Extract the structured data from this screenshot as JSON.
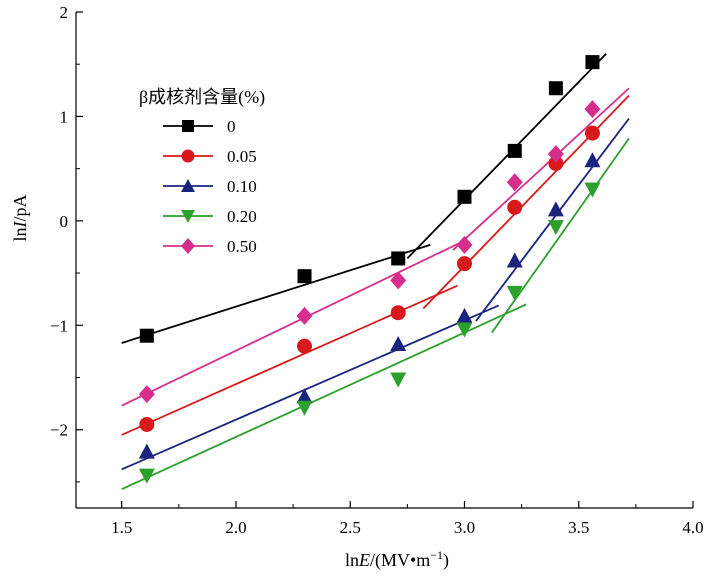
{
  "chart_data": {
    "type": "scatter",
    "xlabel": "ln",
    "xlabel_var": "E",
    "xlabel_unit": "/(MV•m",
    "xlabel_sup": "−1",
    "xlabel_close": ")",
    "ylabel": "ln",
    "ylabel_var": "I",
    "ylabel_unit": "/pA",
    "xlim": [
      1.3,
      4.0
    ],
    "ylim": [
      -2.75,
      2.0
    ],
    "x_ticks": [
      1.5,
      2.0,
      2.5,
      3.0,
      3.5,
      4.0
    ],
    "x_tick_labels": [
      "1.5",
      "2.0",
      "2.5",
      "3.0",
      "3.5",
      "4.0"
    ],
    "y_ticks": [
      2,
      1,
      0,
      -1,
      -2
    ],
    "y_tick_labels": [
      "2",
      "1",
      "0",
      "−1",
      "−2"
    ],
    "legend_title": "β成核剂含量(%)",
    "legend_position": "upper-left",
    "series": [
      {
        "name": "0",
        "color": "#000000",
        "marker": "square",
        "points": [
          [
            1.61,
            -1.1
          ],
          [
            2.3,
            -0.53
          ],
          [
            2.71,
            -0.36
          ],
          [
            3.0,
            0.23
          ],
          [
            3.22,
            0.67
          ],
          [
            3.4,
            1.27
          ],
          [
            3.56,
            1.52
          ]
        ],
        "fit_lines": [
          [
            [
              1.5,
              -1.17
            ],
            [
              2.85,
              -0.23
            ]
          ],
          [
            [
              2.75,
              -0.36
            ],
            [
              3.62,
              1.6
            ]
          ]
        ]
      },
      {
        "name": "0.05",
        "color": "#d7191c",
        "marker": "circle",
        "points": [
          [
            1.61,
            -1.95
          ],
          [
            2.3,
            -1.2
          ],
          [
            2.71,
            -0.88
          ],
          [
            3.0,
            -0.41
          ],
          [
            3.22,
            0.13
          ],
          [
            3.4,
            0.55
          ],
          [
            3.56,
            0.84
          ]
        ],
        "fit_lines": [
          [
            [
              1.5,
              -2.05
            ],
            [
              2.97,
              -0.62
            ]
          ],
          [
            [
              2.82,
              -0.84
            ],
            [
              3.72,
              1.2
            ]
          ]
        ]
      },
      {
        "name": "0.10",
        "color": "#1a237e",
        "marker": "triangle-up",
        "points": [
          [
            1.61,
            -2.21
          ],
          [
            2.3,
            -1.68
          ],
          [
            2.71,
            -1.18
          ],
          [
            3.0,
            -0.91
          ],
          [
            3.22,
            -0.38
          ],
          [
            3.4,
            0.11
          ],
          [
            3.56,
            0.58
          ]
        ],
        "fit_lines": [
          [
            [
              1.5,
              -2.38
            ],
            [
              3.15,
              -0.81
            ]
          ],
          [
            [
              3.05,
              -0.96
            ],
            [
              3.72,
              0.98
            ]
          ]
        ]
      },
      {
        "name": "0.20",
        "color": "#2ca02c",
        "marker": "triangle-down",
        "points": [
          [
            1.61,
            -2.44
          ],
          [
            2.3,
            -1.79
          ],
          [
            2.71,
            -1.52
          ],
          [
            3.0,
            -1.04
          ],
          [
            3.22,
            -0.69
          ],
          [
            3.4,
            -0.06
          ],
          [
            3.56,
            0.3
          ]
        ],
        "fit_lines": [
          [
            [
              1.5,
              -2.57
            ],
            [
              3.27,
              -0.8
            ]
          ],
          [
            [
              3.12,
              -1.07
            ],
            [
              3.72,
              0.79
            ]
          ]
        ]
      },
      {
        "name": "0.50",
        "color": "#d62e8c",
        "marker": "diamond",
        "points": [
          [
            1.61,
            -1.66
          ],
          [
            2.3,
            -0.91
          ],
          [
            2.71,
            -0.57
          ],
          [
            3.0,
            -0.23
          ],
          [
            3.22,
            0.37
          ],
          [
            3.4,
            0.64
          ],
          [
            3.56,
            1.07
          ]
        ],
        "fit_lines": [
          [
            [
              1.5,
              -1.77
            ],
            [
              3.0,
              -0.19
            ]
          ],
          [
            [
              2.95,
              -0.28
            ],
            [
              3.72,
              1.27
            ]
          ]
        ]
      }
    ]
  }
}
